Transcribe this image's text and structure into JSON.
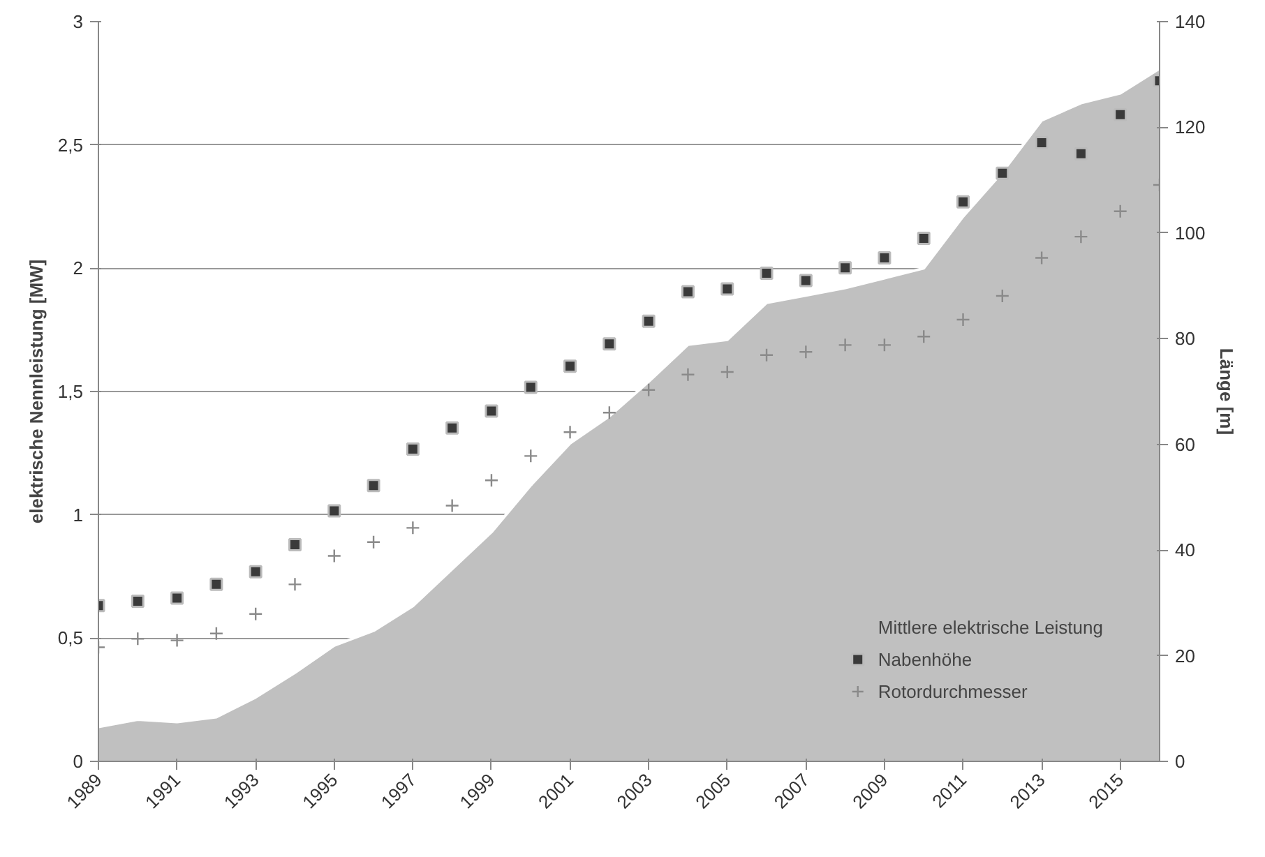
{
  "chart_data": {
    "type": "area",
    "ylabel": "elektrische Nennleistung [MW]",
    "y2label": "Länge [m]",
    "x": [
      1989,
      1990,
      1991,
      1992,
      1993,
      1994,
      1995,
      1996,
      1997,
      1998,
      1999,
      2000,
      2001,
      2002,
      2003,
      2004,
      2005,
      2006,
      2007,
      2008,
      2009,
      2010,
      2011,
      2012,
      2013,
      2014,
      2015,
      2016
    ],
    "xlim": [
      1989,
      2016
    ],
    "xticks": [
      1989,
      1991,
      1993,
      1995,
      1997,
      1999,
      2001,
      2003,
      2005,
      2007,
      2009,
      2011,
      2013,
      2015
    ],
    "ylim": [
      0,
      3
    ],
    "yticks": [
      0,
      {
        "value": 0.5,
        "label": "0,5"
      },
      1,
      {
        "value": 1.5,
        "label": "1,5"
      },
      2,
      {
        "value": 2.5,
        "label": "2,5"
      },
      3
    ],
    "y2lim": [
      0,
      140
    ],
    "y2ticks": [
      0,
      20,
      40,
      60,
      80,
      100,
      120,
      140
    ],
    "grid": "y",
    "legend": "bottom right",
    "series": [
      {
        "name": "Mittlere elektrische Leistung",
        "color": "#c0c0c0",
        "values": [
          0.14,
          0.17,
          0.16,
          0.18,
          0.26,
          0.36,
          0.47,
          0.53,
          0.63,
          0.78,
          0.93,
          1.12,
          1.29,
          1.4,
          1.54,
          1.69,
          1.71,
          1.86,
          1.89,
          1.92,
          1.96,
          2.0,
          2.21,
          2.39,
          2.6,
          2.67,
          2.71,
          2.81
        ]
      },
      {
        "name": "Nabenhöhe",
        "type": "scatter",
        "marker": "square",
        "axis": "y2",
        "color": "#3a3a3a",
        "values": [
          29.5,
          30.3,
          30.9,
          33.5,
          35.9,
          41,
          47.4,
          52.2,
          59.1,
          63.1,
          66.3,
          70.8,
          74.8,
          79,
          83.3,
          88.9,
          89.4,
          92.4,
          91,
          93.4,
          95.3,
          99,
          105.9,
          111.3,
          117.1,
          115,
          122.4,
          128.8
        ]
      },
      {
        "name": "Rotordurchmesser",
        "type": "scatter",
        "marker": "cross",
        "axis": "y2",
        "color": "#8a8a8a",
        "values": [
          21.6,
          23.2,
          22.9,
          24.2,
          27.9,
          33.5,
          38.9,
          41.5,
          44.2,
          48.4,
          53.2,
          57.8,
          62.3,
          66,
          70.3,
          73.2,
          73.7,
          76.9,
          77.5,
          78.8,
          78.8,
          80.4,
          83.6,
          88.1,
          95.3,
          99.3,
          104.1,
          109.1
        ]
      }
    ]
  }
}
